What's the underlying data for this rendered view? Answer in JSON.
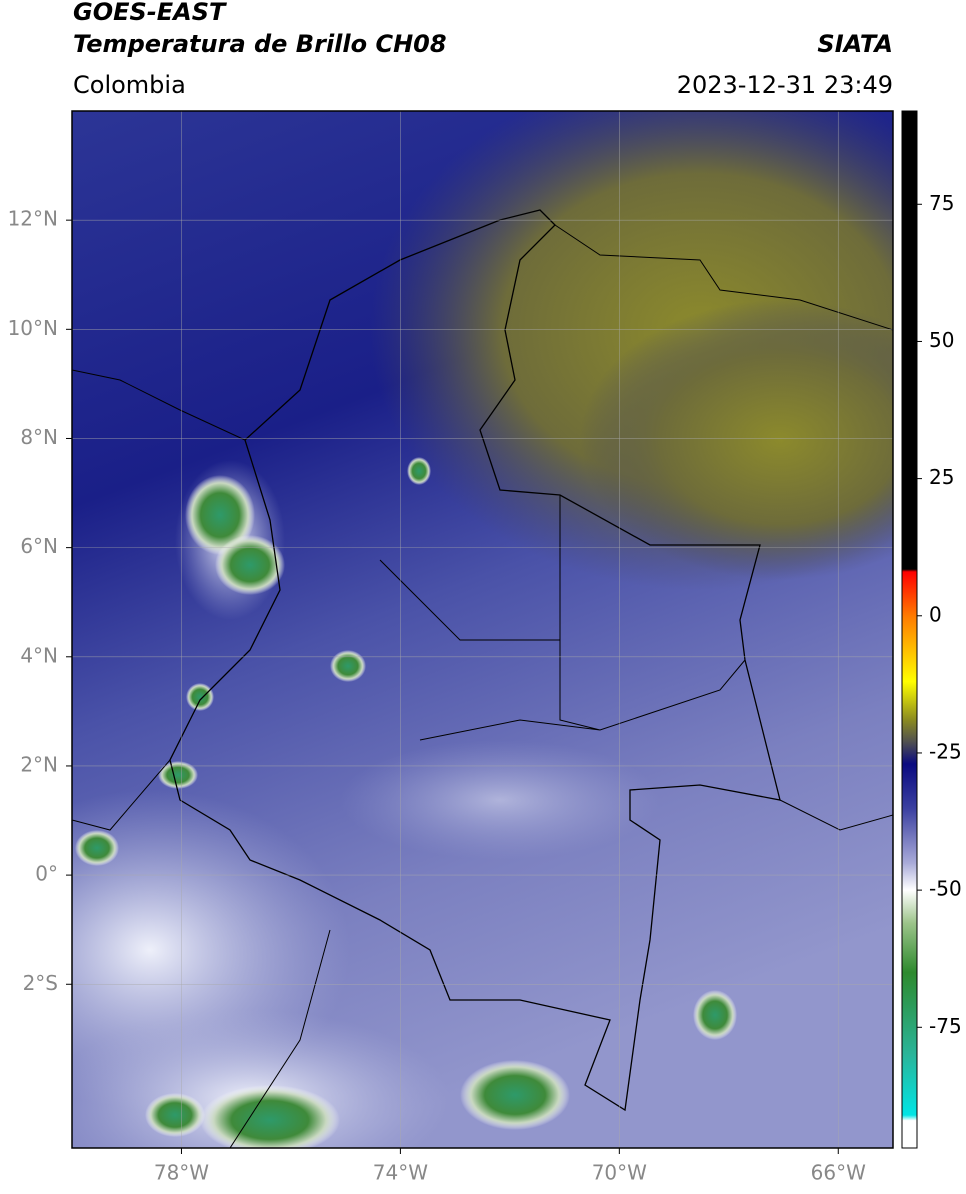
{
  "header": {
    "satellite": "GOES-EAST",
    "product": "Temperatura de Brillo CH08",
    "agency": "SIATA",
    "region": "Colombia",
    "datetime": "2023-12-31 23:49"
  },
  "map": {
    "lonlim": [
      -80,
      -65
    ],
    "latlim": [
      -5,
      14
    ],
    "lonticks": [
      {
        "value": -78,
        "label": "78°W"
      },
      {
        "value": -74,
        "label": "74°W"
      },
      {
        "value": -70,
        "label": "70°W"
      },
      {
        "value": -66,
        "label": "66°W"
      }
    ],
    "latticks": [
      {
        "value": 12,
        "label": "12°N"
      },
      {
        "value": 10,
        "label": "10°N"
      },
      {
        "value": 8,
        "label": "8°N"
      },
      {
        "value": 6,
        "label": "6°N"
      },
      {
        "value": 4,
        "label": "4°N"
      },
      {
        "value": 2,
        "label": "2°N"
      },
      {
        "value": 0,
        "label": "0°"
      },
      {
        "value": -2,
        "label": "2°S"
      }
    ],
    "grid": true
  },
  "colorbar": {
    "lim": [
      -97,
      92
    ],
    "ticks": [
      75,
      50,
      25,
      0,
      -25,
      -50,
      -75
    ],
    "colormap": [
      {
        "value": 92,
        "color": "#000000"
      },
      {
        "value": 8.5,
        "color": "#000000"
      },
      {
        "value": 8,
        "color": "#ff0000"
      },
      {
        "value": 0,
        "color": "#ff7a00"
      },
      {
        "value": -12,
        "color": "#ffff00"
      },
      {
        "value": -19,
        "color": "#8a8a20"
      },
      {
        "value": -23,
        "color": "#505050"
      },
      {
        "value": -27,
        "color": "#0a0a80"
      },
      {
        "value": -35,
        "color": "#3a3fa0"
      },
      {
        "value": -45,
        "color": "#a8aad8"
      },
      {
        "value": -50,
        "color": "#ffffff"
      },
      {
        "value": -56,
        "color": "#9cc48a"
      },
      {
        "value": -65,
        "color": "#2e8a2e"
      },
      {
        "value": -80,
        "color": "#2ab59a"
      },
      {
        "value": -91,
        "color": "#00e5e5"
      },
      {
        "value": -92,
        "color": "#ffffff"
      },
      {
        "value": -97,
        "color": "#ffffff"
      }
    ]
  }
}
